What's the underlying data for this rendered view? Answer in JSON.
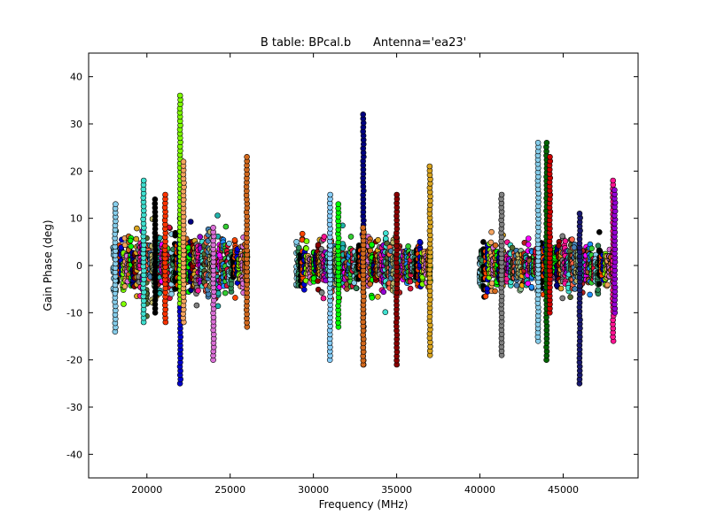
{
  "chart_data": {
    "type": "scatter",
    "title": "B table: BPcal.b      Antenna='ea23'",
    "xlabel": "Frequency (MHz)",
    "ylabel": "Gain Phase (deg)",
    "xlim": [
      16500,
      49500
    ],
    "ylim": [
      -45,
      45
    ],
    "xticks": [
      20000,
      25000,
      30000,
      35000,
      40000,
      45000
    ],
    "yticks": [
      -40,
      -30,
      -20,
      -10,
      0,
      10,
      20,
      30,
      40
    ],
    "grid": false,
    "legend": "none",
    "marker": "circle",
    "bands": [
      {
        "x_start": 18000,
        "x_end": 26000,
        "typical_range": [
          -12,
          12
        ]
      },
      {
        "x_start": 29000,
        "x_end": 37000,
        "typical_range": [
          -10,
          10
        ]
      },
      {
        "x_start": 40000,
        "x_end": 48000,
        "typical_range": [
          -9,
          10
        ]
      }
    ],
    "spikes": [
      {
        "x": 18100,
        "ymin": -14,
        "ymax": 13,
        "color": "#87ceeb"
      },
      {
        "x": 19800,
        "ymin": -12,
        "ymax": 18,
        "color": "#40e0d0"
      },
      {
        "x": 20500,
        "ymin": -10,
        "ymax": 14,
        "color": "#000000"
      },
      {
        "x": 21100,
        "ymin": -12,
        "ymax": 15,
        "color": "#ff3300"
      },
      {
        "x": 22000,
        "ymin": -25,
        "ymax": 10,
        "color": "#0000cd"
      },
      {
        "x": 22000,
        "ymin": -8,
        "ymax": 36,
        "color": "#7fff00"
      },
      {
        "x": 22200,
        "ymin": -12,
        "ymax": 22,
        "color": "#f4a460"
      },
      {
        "x": 24000,
        "ymin": -20,
        "ymax": 8,
        "color": "#da70d6"
      },
      {
        "x": 26000,
        "ymin": -13,
        "ymax": 23,
        "color": "#d2691e"
      },
      {
        "x": 31000,
        "ymin": -20,
        "ymax": 15,
        "color": "#87cefa"
      },
      {
        "x": 31500,
        "ymin": -13,
        "ymax": 13,
        "color": "#00ff00"
      },
      {
        "x": 33000,
        "ymin": -21,
        "ymax": 32,
        "color": "#000080"
      },
      {
        "x": 33000,
        "ymin": -21,
        "ymax": 8,
        "color": "#d2691e"
      },
      {
        "x": 35000,
        "ymin": -21,
        "ymax": 15,
        "color": "#8b0000"
      },
      {
        "x": 37000,
        "ymin": -19,
        "ymax": 21,
        "color": "#daa520"
      },
      {
        "x": 41300,
        "ymin": -19,
        "ymax": 15,
        "color": "#808080"
      },
      {
        "x": 43500,
        "ymin": -16,
        "ymax": 26,
        "color": "#87ceeb"
      },
      {
        "x": 44000,
        "ymin": -20,
        "ymax": 26,
        "color": "#006400"
      },
      {
        "x": 44200,
        "ymin": -10,
        "ymax": 23,
        "color": "#cc0000"
      },
      {
        "x": 46000,
        "ymin": -25,
        "ymax": 11,
        "color": "#191970"
      },
      {
        "x": 48000,
        "ymin": -16,
        "ymax": 18,
        "color": "#ff1493"
      },
      {
        "x": 48100,
        "ymin": -10,
        "ymax": 16,
        "color": "#9400d3"
      }
    ],
    "palette": [
      "#87ceeb",
      "#2e8b57",
      "#000000",
      "#ff4500",
      "#0000cd",
      "#7fff00",
      "#f4a460",
      "#da70d6",
      "#d2691e",
      "#00ff00",
      "#000080",
      "#8b0000",
      "#daa520",
      "#808080",
      "#ff1493",
      "#9400d3",
      "#40e0d0",
      "#556b2f",
      "#ff6347",
      "#4682b4",
      "#bdb76b",
      "#8fbc8f",
      "#ffa500",
      "#b22222",
      "#20b2aa",
      "#ff00ff",
      "#a0522d",
      "#1e90ff",
      "#32cd32",
      "#dc143c"
    ]
  }
}
